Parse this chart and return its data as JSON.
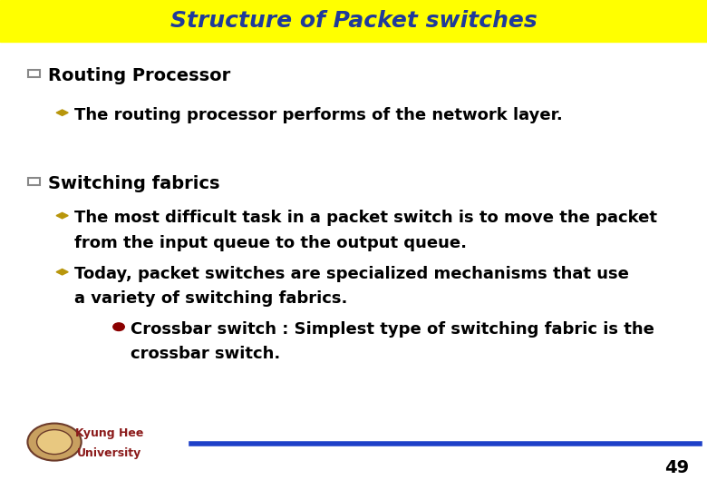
{
  "title": "Structure of Packet switches",
  "title_color": "#1F3A9A",
  "title_bg_color": "#FFFF00",
  "bg_color": "#FFFFFF",
  "body_text_color": "#000000",
  "bullet1_heading": "Routing Processor",
  "bullet1_sub1": "The routing processor performs of the network layer.",
  "bullet2_heading": "Switching fabrics",
  "bullet2_sub1_line1": "The most difficult task in a packet switch is to move the packet",
  "bullet2_sub1_line2": "from the input queue to the output queue.",
  "bullet2_sub2_line1": "Today, packet switches are specialized mechanisms that use",
  "bullet2_sub2_line2": "a variety of switching fabrics.",
  "bullet2_sub2_sub1_line1": "Crossbar switch : Simplest type of switching fabric is the",
  "bullet2_sub2_sub1_line2": "crossbar switch.",
  "footer_text1": "Kyung Hee",
  "footer_text2": "University",
  "page_number": "49",
  "line_color": "#1E40C8",
  "square_bullet_color": "#888888",
  "diamond_bullet_color": "#B8960C",
  "circle_bullet_color": "#8B0000",
  "title_fontsize": 18,
  "heading_fontsize": 14,
  "sub_fontsize": 13,
  "footer_fontsize": 9,
  "page_fontsize": 14
}
